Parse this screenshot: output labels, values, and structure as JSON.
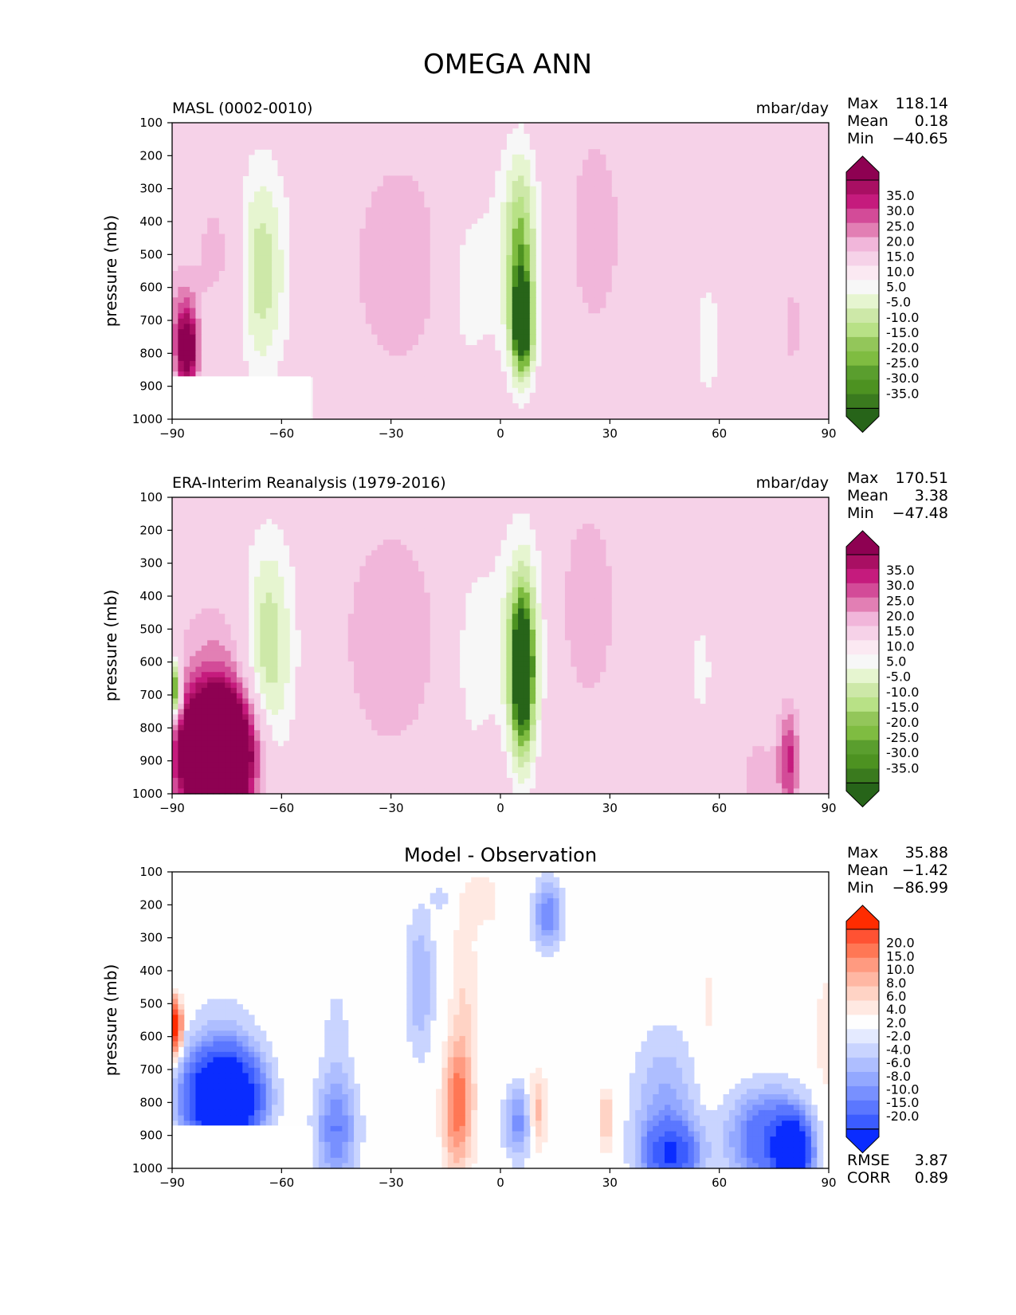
{
  "figure": {
    "title": "OMEGA ANN"
  },
  "chart_data": [
    {
      "type": "heatmap",
      "title_left": "MASL (0002-0010)",
      "title_center": "",
      "units": "mbar/day",
      "ylabel": "pressure (mb)",
      "xlabel": "",
      "xlim": [
        -90,
        90
      ],
      "ylim": [
        1000,
        100
      ],
      "x_ticks": [
        "−90",
        "−60",
        "−30",
        "0",
        "30",
        "60",
        "90"
      ],
      "y_ticks": [
        "100",
        "200",
        "300",
        "400",
        "500",
        "600",
        "700",
        "800",
        "900",
        "1000"
      ],
      "stats": {
        "labels": [
          "Max",
          "Mean",
          "Min"
        ],
        "values": [
          "118.14",
          "0.18",
          "−40.65"
        ]
      },
      "colorbar": {
        "labels": [
          "35.0",
          "30.0",
          "25.0",
          "20.0",
          "15.0",
          "10.0",
          "5.0",
          "-5.0",
          "-10.0",
          "-15.0",
          "-20.0",
          "-25.0",
          "-30.0",
          "-35.0"
        ],
        "colors": [
          "#8e0152",
          "#a90f63",
          "#c51b7d",
          "#d34b98",
          "#e27fb4",
          "#f1b6da",
          "#f6d2e8",
          "#fbe9f2",
          "#f7f7f7",
          "#e6f5d0",
          "#cde8a8",
          "#b8e186",
          "#93c65a",
          "#7fbc41",
          "#5a9e2e",
          "#4d9221",
          "#3a7a1e",
          "#276419"
        ]
      },
      "features": [
        {
          "lat": -86,
          "p": 790,
          "dlat": 3,
          "dp": 120,
          "v": 40
        },
        {
          "lat": -88,
          "p": 650,
          "dlat": 5,
          "dp": 150,
          "v": 8
        },
        {
          "lat": -78,
          "p": 480,
          "dlat": 6,
          "dp": 230,
          "v": 7
        },
        {
          "lat": -72,
          "p": 580,
          "dlat": 3,
          "dp": 200,
          "v": 8
        },
        {
          "lat": -66,
          "p": 560,
          "dlat": 6,
          "dp": 300,
          "v": -13
        },
        {
          "lat": -64,
          "p": 520,
          "dlat": 10,
          "dp": 380,
          "v": -6
        },
        {
          "lat": -28,
          "p": 530,
          "dlat": 14,
          "dp": 360,
          "v": 9
        },
        {
          "lat": -10,
          "p": 600,
          "dlat": 6,
          "dp": 330,
          "v": -7
        },
        {
          "lat": 6,
          "p": 720,
          "dlat": 3,
          "dp": 150,
          "v": -40
        },
        {
          "lat": 5.5,
          "p": 470,
          "dlat": 4,
          "dp": 260,
          "v": -20
        },
        {
          "lat": 3,
          "p": 520,
          "dlat": 9,
          "dp": 380,
          "v": -8
        },
        {
          "lat": 26,
          "p": 430,
          "dlat": 7,
          "dp": 300,
          "v": 10
        },
        {
          "lat": 57,
          "p": 760,
          "dlat": 5,
          "dp": 250,
          "v": -7
        },
        {
          "lat": 80,
          "p": 720,
          "dlat": 3,
          "dp": 160,
          "v": 7
        }
      ],
      "mask": {
        "lat": [
          -90,
          -52
        ],
        "p": [
          870,
          1000
        ]
      }
    },
    {
      "type": "heatmap",
      "title_left": "ERA-Interim Reanalysis (1979-2016)",
      "title_center": "",
      "units": "mbar/day",
      "ylabel": "pressure (mb)",
      "xlabel": "",
      "xlim": [
        -90,
        90
      ],
      "ylim": [
        1000,
        100
      ],
      "x_ticks": [
        "−90",
        "−60",
        "−30",
        "0",
        "30",
        "60",
        "90"
      ],
      "y_ticks": [
        "100",
        "200",
        "300",
        "400",
        "500",
        "600",
        "700",
        "800",
        "900",
        "1000"
      ],
      "stats": {
        "labels": [
          "Max",
          "Mean",
          "Min"
        ],
        "values": [
          "170.51",
          "3.38",
          "−47.48"
        ]
      },
      "colorbar": {
        "labels": [
          "35.0",
          "30.0",
          "25.0",
          "20.0",
          "15.0",
          "10.0",
          "5.0",
          "-5.0",
          "-10.0",
          "-15.0",
          "-20.0",
          "-25.0",
          "-30.0",
          "-35.0"
        ],
        "colors": [
          "#8e0152",
          "#a90f63",
          "#c51b7d",
          "#d34b98",
          "#e27fb4",
          "#f1b6da",
          "#f6d2e8",
          "#fbe9f2",
          "#f7f7f7",
          "#e6f5d0",
          "#cde8a8",
          "#b8e186",
          "#93c65a",
          "#7fbc41",
          "#5a9e2e",
          "#4d9221",
          "#3a7a1e",
          "#276419"
        ]
      },
      "features": [
        {
          "lat": -78,
          "p": 880,
          "dlat": 9,
          "dp": 170,
          "v": 110
        },
        {
          "lat": -78,
          "p": 600,
          "dlat": 12,
          "dp": 230,
          "v": 9
        },
        {
          "lat": -89,
          "p": 690,
          "dlat": 1.5,
          "dp": 90,
          "v": -40
        },
        {
          "lat": -64,
          "p": 560,
          "dlat": 6,
          "dp": 300,
          "v": -15
        },
        {
          "lat": -62,
          "p": 560,
          "dlat": 10,
          "dp": 420,
          "v": -6
        },
        {
          "lat": -30,
          "p": 530,
          "dlat": 15,
          "dp": 390,
          "v": 9
        },
        {
          "lat": -8,
          "p": 580,
          "dlat": 6,
          "dp": 330,
          "v": -8
        },
        {
          "lat": 6,
          "p": 630,
          "dlat": 3.5,
          "dp": 250,
          "v": -45
        },
        {
          "lat": 5,
          "p": 500,
          "dlat": 8,
          "dp": 380,
          "v": -10
        },
        {
          "lat": 24,
          "p": 430,
          "dlat": 8,
          "dp": 300,
          "v": 10
        },
        {
          "lat": 55,
          "p": 620,
          "dlat": 5,
          "dp": 250,
          "v": -6
        },
        {
          "lat": 79,
          "p": 900,
          "dlat": 3,
          "dp": 160,
          "v": 22
        },
        {
          "lat": 71,
          "p": 950,
          "dlat": 4,
          "dp": 120,
          "v": 10
        }
      ],
      "mask": null
    },
    {
      "type": "heatmap",
      "title_left": "",
      "title_center": "Model - Observation",
      "units": "",
      "ylabel": "pressure (mb)",
      "xlabel": "",
      "xlim": [
        -90,
        90
      ],
      "ylim": [
        1000,
        100
      ],
      "x_ticks": [
        "−90",
        "−60",
        "−30",
        "0",
        "30",
        "60",
        "90"
      ],
      "y_ticks": [
        "100",
        "200",
        "300",
        "400",
        "500",
        "600",
        "700",
        "800",
        "900",
        "1000"
      ],
      "stats": {
        "labels": [
          "Max",
          "Mean",
          "Min"
        ],
        "values": [
          "35.88",
          "−1.42",
          "−86.99"
        ]
      },
      "colorbar": {
        "labels": [
          "20.0",
          "15.0",
          "10.0",
          "8.0",
          "6.0",
          "4.0",
          "2.0",
          "-2.0",
          "-4.0",
          "-6.0",
          "-8.0",
          "-10.0",
          "-15.0",
          "-20.0"
        ],
        "colors": [
          "#ff2c00",
          "#ff5233",
          "#ff7755",
          "#ff9a80",
          "#ffb7a3",
          "#ffd3c5",
          "#ffe9e2",
          "#fefefe",
          "#e4eaff",
          "#c9d4ff",
          "#aebeff",
          "#93a8ff",
          "#7890ff",
          "#5b77ff",
          "#3b5cff",
          "#0a2cff"
        ]
      },
      "features": [
        {
          "lat": -76,
          "p": 790,
          "dlat": 9,
          "dp": 130,
          "v": -45
        },
        {
          "lat": -76,
          "p": 620,
          "dlat": 11,
          "dp": 200,
          "v": -3
        },
        {
          "lat": -89,
          "p": 570,
          "dlat": 1.5,
          "dp": 80,
          "v": 25
        },
        {
          "lat": -45,
          "p": 890,
          "dlat": 6,
          "dp": 150,
          "v": -8
        },
        {
          "lat": -45,
          "p": 700,
          "dlat": 5,
          "dp": 350,
          "v": -3
        },
        {
          "lat": -22,
          "p": 440,
          "dlat": 4,
          "dp": 230,
          "v": -6
        },
        {
          "lat": -12,
          "p": 820,
          "dlat": 4,
          "dp": 190,
          "v": 10
        },
        {
          "lat": -10,
          "p": 550,
          "dlat": 4,
          "dp": 400,
          "v": 4
        },
        {
          "lat": -4,
          "p": 185,
          "dlat": 5,
          "dp": 90,
          "v": 3
        },
        {
          "lat": 5,
          "p": 860,
          "dlat": 4,
          "dp": 110,
          "v": -9
        },
        {
          "lat": 10,
          "p": 830,
          "dlat": 2.5,
          "dp": 120,
          "v": 8
        },
        {
          "lat": 13,
          "p": 230,
          "dlat": 4,
          "dp": 100,
          "v": -10
        },
        {
          "lat": -16,
          "p": 180,
          "dlat": 3,
          "dp": 40,
          "v": -3
        },
        {
          "lat": 29,
          "p": 850,
          "dlat": 2,
          "dp": 100,
          "v": 7
        },
        {
          "lat": 45,
          "p": 850,
          "dlat": 9,
          "dp": 260,
          "v": -7
        },
        {
          "lat": 47,
          "p": 960,
          "dlat": 7,
          "dp": 90,
          "v": -16
        },
        {
          "lat": 74,
          "p": 910,
          "dlat": 11,
          "dp": 140,
          "v": -15
        },
        {
          "lat": 80,
          "p": 960,
          "dlat": 4,
          "dp": 90,
          "v": -40
        },
        {
          "lat": 57,
          "p": 520,
          "dlat": 3,
          "dp": 230,
          "v": 2.5
        },
        {
          "lat": 89,
          "p": 620,
          "dlat": 3,
          "dp": 300,
          "v": 3
        }
      ],
      "mask": {
        "lat": [
          -90,
          -52
        ],
        "p": [
          870,
          1000
        ]
      }
    }
  ],
  "metrics": {
    "labels": [
      "RMSE",
      "CORR"
    ],
    "values": [
      "3.87",
      "0.89"
    ]
  }
}
